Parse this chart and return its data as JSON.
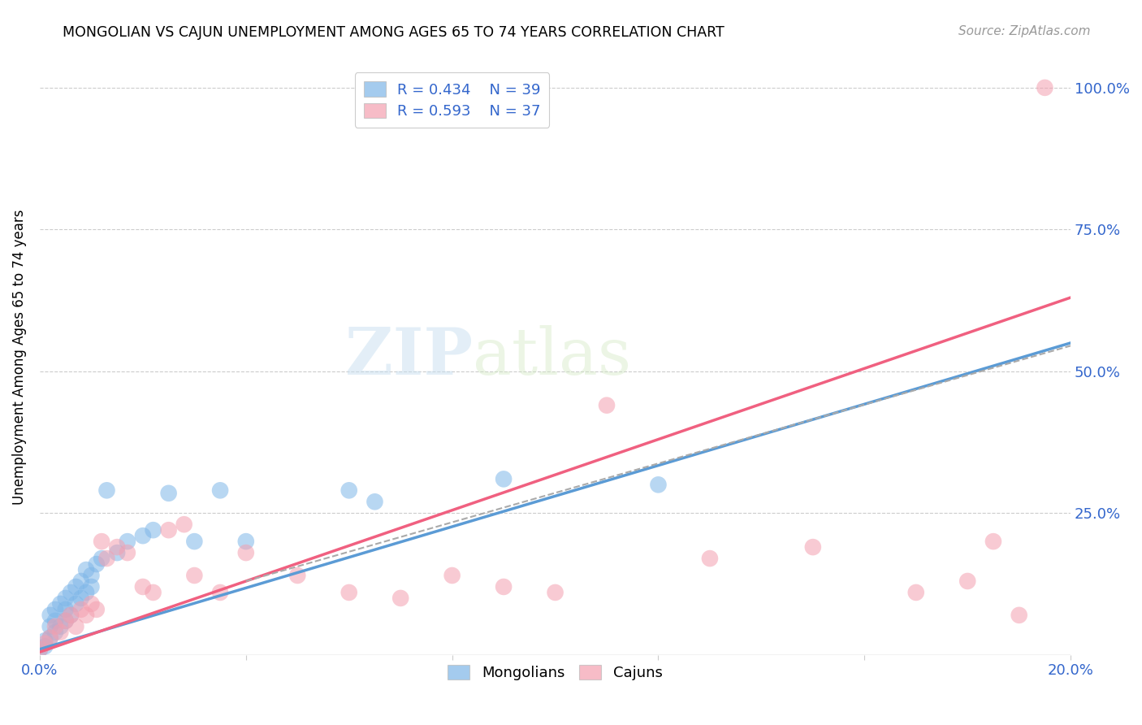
{
  "title": "MONGOLIAN VS CAJUN UNEMPLOYMENT AMONG AGES 65 TO 74 YEARS CORRELATION CHART",
  "source": "Source: ZipAtlas.com",
  "ylabel": "Unemployment Among Ages 65 to 74 years",
  "xlim": [
    0.0,
    0.2
  ],
  "ylim": [
    0.0,
    1.05
  ],
  "x_ticks": [
    0.0,
    0.04,
    0.08,
    0.12,
    0.16,
    0.2
  ],
  "y_ticks": [
    0.0,
    0.25,
    0.5,
    0.75,
    1.0
  ],
  "y_tick_labels": [
    "",
    "25.0%",
    "50.0%",
    "75.0%",
    "100.0%"
  ],
  "mongolian_R": "0.434",
  "mongolian_N": "39",
  "cajun_R": "0.593",
  "cajun_N": "37",
  "mongolian_color": "#7EB6E8",
  "cajun_color": "#F4A0B0",
  "mongolian_line_color": "#5B9BD5",
  "cajun_line_color": "#F06080",
  "watermark_zip": "ZIP",
  "watermark_atlas": "atlas",
  "mongolian_x": [
    0.0,
    0.001,
    0.001,
    0.002,
    0.002,
    0.002,
    0.003,
    0.003,
    0.003,
    0.004,
    0.004,
    0.005,
    0.005,
    0.005,
    0.006,
    0.006,
    0.007,
    0.007,
    0.008,
    0.008,
    0.009,
    0.009,
    0.01,
    0.01,
    0.011,
    0.012,
    0.013,
    0.015,
    0.017,
    0.02,
    0.022,
    0.025,
    0.03,
    0.035,
    0.04,
    0.06,
    0.065,
    0.09,
    0.12
  ],
  "mongolian_y": [
    0.01,
    0.015,
    0.025,
    0.03,
    0.05,
    0.07,
    0.04,
    0.06,
    0.08,
    0.05,
    0.09,
    0.06,
    0.08,
    0.1,
    0.07,
    0.11,
    0.09,
    0.12,
    0.1,
    0.13,
    0.11,
    0.15,
    0.12,
    0.14,
    0.16,
    0.17,
    0.29,
    0.18,
    0.2,
    0.21,
    0.22,
    0.285,
    0.2,
    0.29,
    0.2,
    0.29,
    0.27,
    0.31,
    0.3
  ],
  "cajun_x": [
    0.0,
    0.001,
    0.002,
    0.003,
    0.004,
    0.005,
    0.006,
    0.007,
    0.008,
    0.009,
    0.01,
    0.011,
    0.012,
    0.013,
    0.015,
    0.017,
    0.02,
    0.022,
    0.025,
    0.028,
    0.03,
    0.035,
    0.04,
    0.05,
    0.06,
    0.07,
    0.08,
    0.09,
    0.1,
    0.11,
    0.13,
    0.15,
    0.17,
    0.18,
    0.185,
    0.19,
    0.195
  ],
  "cajun_y": [
    0.01,
    0.02,
    0.03,
    0.05,
    0.04,
    0.06,
    0.07,
    0.05,
    0.08,
    0.07,
    0.09,
    0.08,
    0.2,
    0.17,
    0.19,
    0.18,
    0.12,
    0.11,
    0.22,
    0.23,
    0.14,
    0.11,
    0.18,
    0.14,
    0.11,
    0.1,
    0.14,
    0.12,
    0.11,
    0.44,
    0.17,
    0.19,
    0.11,
    0.13,
    0.2,
    0.07,
    1.0
  ],
  "blue_line_x0": 0.0,
  "blue_line_y0": 0.01,
  "blue_line_x1": 0.2,
  "blue_line_y1": 0.55,
  "pink_line_x0": 0.0,
  "pink_line_y0": 0.005,
  "pink_line_x1": 0.2,
  "pink_line_y1": 0.63,
  "dash_line_x0": 0.04,
  "dash_line_y0": 0.13,
  "dash_line_x1": 0.2,
  "dash_line_y1": 0.545
}
